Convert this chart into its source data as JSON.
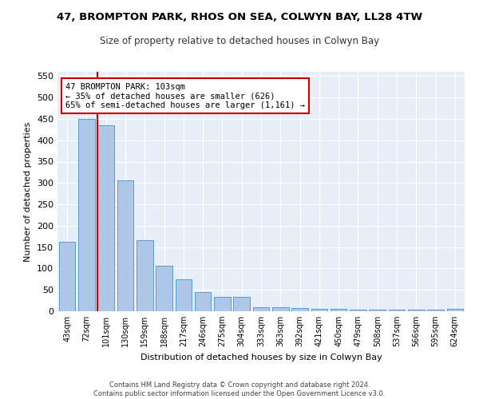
{
  "title": "47, BROMPTON PARK, RHOS ON SEA, COLWYN BAY, LL28 4TW",
  "subtitle": "Size of property relative to detached houses in Colwyn Bay",
  "xlabel": "Distribution of detached houses by size in Colwyn Bay",
  "ylabel": "Number of detached properties",
  "categories": [
    "43sqm",
    "72sqm",
    "101sqm",
    "130sqm",
    "159sqm",
    "188sqm",
    "217sqm",
    "246sqm",
    "275sqm",
    "304sqm",
    "333sqm",
    "363sqm",
    "392sqm",
    "421sqm",
    "450sqm",
    "479sqm",
    "508sqm",
    "537sqm",
    "566sqm",
    "595sqm",
    "624sqm"
  ],
  "values": [
    163,
    450,
    435,
    307,
    167,
    106,
    74,
    45,
    33,
    33,
    10,
    10,
    8,
    5,
    5,
    3,
    3,
    3,
    3,
    3,
    5
  ],
  "bar_color": "#aec6e8",
  "bar_edge_color": "#5a9ac9",
  "redline_index": 2,
  "annotation_line1": "47 BROMPTON PARK: 103sqm",
  "annotation_line2": "← 35% of detached houses are smaller (626)",
  "annotation_line3": "65% of semi-detached houses are larger (1,161) →",
  "annotation_box_color": "#ffffff",
  "annotation_box_edge": "#cc0000",
  "redline_color": "#cc0000",
  "ylim": [
    0,
    560
  ],
  "yticks": [
    0,
    50,
    100,
    150,
    200,
    250,
    300,
    350,
    400,
    450,
    500,
    550
  ],
  "background_color": "#e8eef8",
  "footer_line1": "Contains HM Land Registry data © Crown copyright and database right 2024.",
  "footer_line2": "Contains public sector information licensed under the Open Government Licence v3.0.",
  "title_fontsize": 9.5,
  "subtitle_fontsize": 8.5
}
